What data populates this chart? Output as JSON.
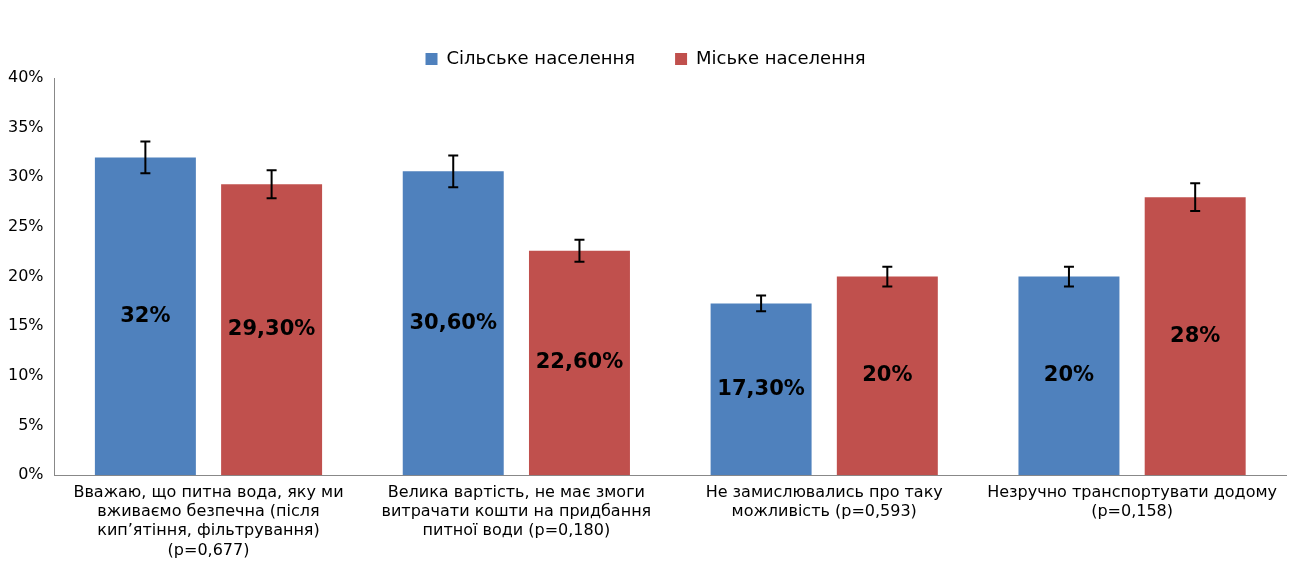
{
  "chart_data": {
    "type": "bar",
    "categories": [
      "Вважаю, що питна вода, яку ми вживаємо безпечна (після кип’ятіння, фільтрування) (p=0,677)",
      "Велика вартість, не має змоги витрачати кошти на придбання питної води (p=0,180)",
      "Не замислювались про таку можливість (p=0,593)",
      "Незручно транспортувати додому (p=0,158)"
    ],
    "series": [
      {
        "name": "Сільське населення",
        "color": "#4f81bd",
        "values": [
          32,
          30.6,
          17.3,
          20
        ],
        "errors": [
          1.6,
          1.6,
          0.8,
          1.0
        ],
        "value_labels": [
          "32%",
          "30,60%",
          "17,30%",
          "20%"
        ]
      },
      {
        "name": "Міське населення",
        "color": "#c0504d",
        "values": [
          29.3,
          22.6,
          20,
          28
        ],
        "errors": [
          1.4,
          1.1,
          1.0,
          1.4
        ],
        "value_labels": [
          "29,30%",
          "22,60%",
          "20%",
          "28%"
        ]
      }
    ],
    "ylim": [
      0,
      40
    ],
    "yticks": [
      {
        "value": 0,
        "label": "0%"
      },
      {
        "value": 5,
        "label": "5%"
      },
      {
        "value": 10,
        "label": "10%"
      },
      {
        "value": 15,
        "label": "15%"
      },
      {
        "value": 20,
        "label": "20%"
      },
      {
        "value": 25,
        "label": "25%"
      },
      {
        "value": 30,
        "label": "30%"
      },
      {
        "value": 35,
        "label": "35%"
      },
      {
        "value": 40,
        "label": "40%"
      }
    ],
    "grid": false,
    "legend": "top"
  }
}
